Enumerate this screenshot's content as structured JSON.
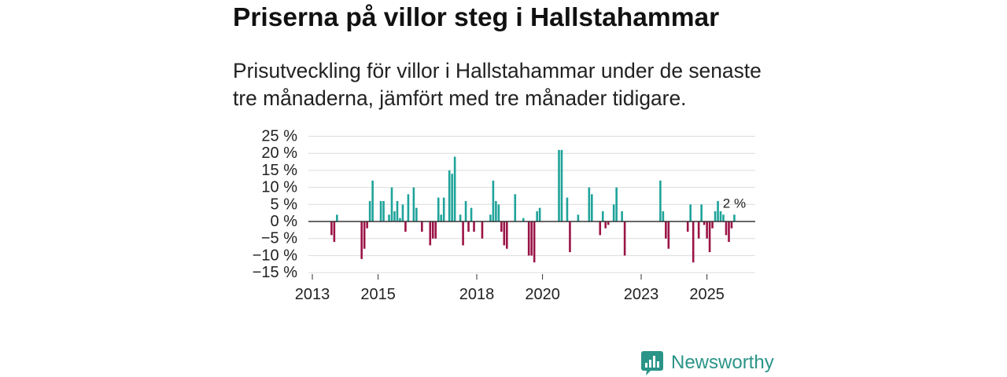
{
  "chart_data": {
    "type": "bar",
    "title": "Priserna på villor steg i Hallstahammar",
    "subtitle": "Prisutveckling för villor i Hallstahammar under de senaste tre månaderna, jämfört med tre månader tidigare.",
    "ylim": [
      -15,
      25
    ],
    "grid": true,
    "yticks": [
      {
        "value": 25,
        "label": "25 %"
      },
      {
        "value": 20,
        "label": "20 %"
      },
      {
        "value": 15,
        "label": "15 %"
      },
      {
        "value": 10,
        "label": "10 %"
      },
      {
        "value": 5,
        "label": "5 %"
      },
      {
        "value": 0,
        "label": "0 %"
      },
      {
        "value": -5,
        "label": "−5 %"
      },
      {
        "value": -10,
        "label": "−10 %"
      },
      {
        "value": -15,
        "label": "−15 %"
      }
    ],
    "xticks": [
      {
        "value": 2013,
        "label": "2013"
      },
      {
        "value": 2015,
        "label": "2015"
      },
      {
        "value": 2018,
        "label": "2018"
      },
      {
        "value": 2020,
        "label": "2020"
      },
      {
        "value": 2023,
        "label": "2023"
      },
      {
        "value": 2025,
        "label": "2025"
      }
    ],
    "points": [
      {
        "year": 2013,
        "month": 8,
        "value": -4
      },
      {
        "year": 2013,
        "month": 9,
        "value": -6
      },
      {
        "year": 2013,
        "month": 10,
        "value": 2
      },
      {
        "year": 2014,
        "month": 7,
        "value": -11
      },
      {
        "year": 2014,
        "month": 8,
        "value": -8
      },
      {
        "year": 2014,
        "month": 9,
        "value": -2
      },
      {
        "year": 2014,
        "month": 10,
        "value": 6
      },
      {
        "year": 2014,
        "month": 11,
        "value": 12
      },
      {
        "year": 2015,
        "month": 2,
        "value": 6
      },
      {
        "year": 2015,
        "month": 3,
        "value": 6
      },
      {
        "year": 2015,
        "month": 5,
        "value": 2
      },
      {
        "year": 2015,
        "month": 6,
        "value": 10
      },
      {
        "year": 2015,
        "month": 7,
        "value": 3
      },
      {
        "year": 2015,
        "month": 8,
        "value": 6
      },
      {
        "year": 2015,
        "month": 9,
        "value": 1
      },
      {
        "year": 2015,
        "month": 10,
        "value": 5
      },
      {
        "year": 2015,
        "month": 11,
        "value": -3
      },
      {
        "year": 2015,
        "month": 12,
        "value": 8
      },
      {
        "year": 2016,
        "month": 2,
        "value": 10
      },
      {
        "year": 2016,
        "month": 3,
        "value": 4
      },
      {
        "year": 2016,
        "month": 5,
        "value": -3
      },
      {
        "year": 2016,
        "month": 8,
        "value": -7
      },
      {
        "year": 2016,
        "month": 9,
        "value": -5
      },
      {
        "year": 2016,
        "month": 10,
        "value": -5
      },
      {
        "year": 2016,
        "month": 11,
        "value": 7
      },
      {
        "year": 2016,
        "month": 12,
        "value": 2
      },
      {
        "year": 2017,
        "month": 1,
        "value": 7
      },
      {
        "year": 2017,
        "month": 3,
        "value": 15
      },
      {
        "year": 2017,
        "month": 4,
        "value": 14
      },
      {
        "year": 2017,
        "month": 5,
        "value": 19
      },
      {
        "year": 2017,
        "month": 7,
        "value": 2
      },
      {
        "year": 2017,
        "month": 8,
        "value": -7
      },
      {
        "year": 2017,
        "month": 9,
        "value": 6
      },
      {
        "year": 2017,
        "month": 10,
        "value": -3
      },
      {
        "year": 2017,
        "month": 11,
        "value": 4
      },
      {
        "year": 2017,
        "month": 12,
        "value": -3
      },
      {
        "year": 2018,
        "month": 3,
        "value": -5
      },
      {
        "year": 2018,
        "month": 6,
        "value": 2
      },
      {
        "year": 2018,
        "month": 7,
        "value": 12
      },
      {
        "year": 2018,
        "month": 8,
        "value": 6
      },
      {
        "year": 2018,
        "month": 9,
        "value": 5
      },
      {
        "year": 2018,
        "month": 10,
        "value": -3
      },
      {
        "year": 2018,
        "month": 11,
        "value": -7
      },
      {
        "year": 2018,
        "month": 12,
        "value": -8
      },
      {
        "year": 2019,
        "month": 3,
        "value": 8
      },
      {
        "year": 2019,
        "month": 6,
        "value": 1
      },
      {
        "year": 2019,
        "month": 8,
        "value": -10
      },
      {
        "year": 2019,
        "month": 9,
        "value": -10
      },
      {
        "year": 2019,
        "month": 10,
        "value": -12
      },
      {
        "year": 2019,
        "month": 11,
        "value": 3
      },
      {
        "year": 2019,
        "month": 12,
        "value": 4
      },
      {
        "year": 2020,
        "month": 7,
        "value": 21
      },
      {
        "year": 2020,
        "month": 8,
        "value": 21
      },
      {
        "year": 2020,
        "month": 10,
        "value": 7
      },
      {
        "year": 2020,
        "month": 11,
        "value": -9
      },
      {
        "year": 2021,
        "month": 2,
        "value": 2
      },
      {
        "year": 2021,
        "month": 6,
        "value": 10
      },
      {
        "year": 2021,
        "month": 7,
        "value": 8
      },
      {
        "year": 2021,
        "month": 10,
        "value": -4
      },
      {
        "year": 2021,
        "month": 11,
        "value": 3
      },
      {
        "year": 2021,
        "month": 12,
        "value": -2
      },
      {
        "year": 2022,
        "month": 1,
        "value": -1
      },
      {
        "year": 2022,
        "month": 3,
        "value": 5
      },
      {
        "year": 2022,
        "month": 4,
        "value": 10
      },
      {
        "year": 2022,
        "month": 6,
        "value": 3
      },
      {
        "year": 2022,
        "month": 7,
        "value": -10
      },
      {
        "year": 2023,
        "month": 8,
        "value": 12
      },
      {
        "year": 2023,
        "month": 9,
        "value": 3
      },
      {
        "year": 2023,
        "month": 10,
        "value": -5
      },
      {
        "year": 2023,
        "month": 11,
        "value": -8
      },
      {
        "year": 2024,
        "month": 6,
        "value": -3
      },
      {
        "year": 2024,
        "month": 7,
        "value": 5
      },
      {
        "year": 2024,
        "month": 8,
        "value": -12
      },
      {
        "year": 2024,
        "month": 10,
        "value": -5
      },
      {
        "year": 2024,
        "month": 11,
        "value": 5
      },
      {
        "year": 2024,
        "month": 12,
        "value": -1
      },
      {
        "year": 2025,
        "month": 1,
        "value": -5
      },
      {
        "year": 2025,
        "month": 2,
        "value": -9
      },
      {
        "year": 2025,
        "month": 3,
        "value": -2
      },
      {
        "year": 2025,
        "month": 4,
        "value": 3
      },
      {
        "year": 2025,
        "month": 5,
        "value": 6
      },
      {
        "year": 2025,
        "month": 6,
        "value": 3
      },
      {
        "year": 2025,
        "month": 7,
        "value": 2
      },
      {
        "year": 2025,
        "month": 8,
        "value": -4
      },
      {
        "year": 2025,
        "month": 9,
        "value": -6
      },
      {
        "year": 2025,
        "month": 10,
        "value": -2
      },
      {
        "year": 2025,
        "month": 11,
        "value": 2
      }
    ],
    "annotations": [
      {
        "year": 2025,
        "month": 11,
        "value": 2,
        "text": "2 %"
      }
    ],
    "colors": {
      "positive": "#1fa39a",
      "negative": "#9b1446",
      "zero_line": "#333333",
      "grid": "#dcdcdc",
      "text": "#222222"
    }
  },
  "branding": {
    "logo_text": "Newsworthy",
    "logo_icon": "newsworthy-chart-bubble-icon",
    "color": "#2a9488"
  }
}
